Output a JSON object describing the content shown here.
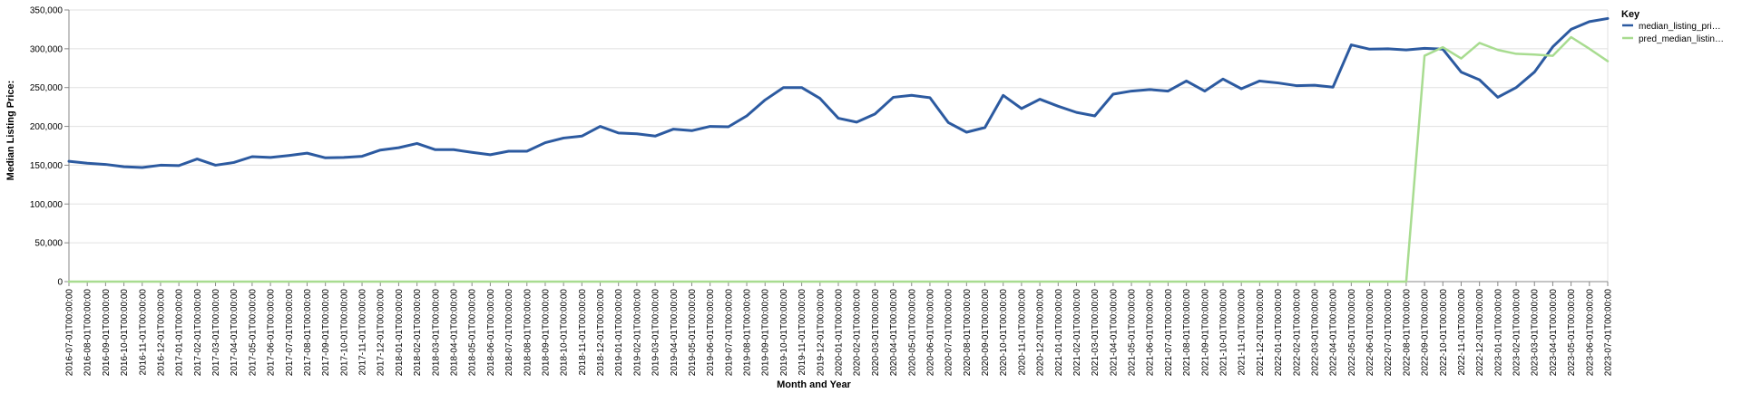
{
  "chart_data": {
    "type": "line",
    "title": "",
    "xlabel": "Month and Year",
    "ylabel": "Median Listing Price:",
    "ylim": [
      0,
      350000
    ],
    "yticks": [
      0,
      50000,
      100000,
      150000,
      200000,
      250000,
      300000,
      350000
    ],
    "ytick_labels": [
      "0",
      "50,000",
      "100,000",
      "150,000",
      "200,000",
      "250,000",
      "300,000",
      "350,000"
    ],
    "grid": true,
    "legend": {
      "title": "Key",
      "position": "top-right"
    },
    "x": [
      "2016-07-01T00:00:00",
      "2016-08-01T00:00:00",
      "2016-09-01T00:00:00",
      "2016-10-01T00:00:00",
      "2016-11-01T00:00:00",
      "2016-12-01T00:00:00",
      "2017-01-01T00:00:00",
      "2017-02-01T00:00:00",
      "2017-03-01T00:00:00",
      "2017-04-01T00:00:00",
      "2017-05-01T00:00:00",
      "2017-06-01T00:00:00",
      "2017-07-01T00:00:00",
      "2017-08-01T00:00:00",
      "2017-09-01T00:00:00",
      "2017-10-01T00:00:00",
      "2017-11-01T00:00:00",
      "2017-12-01T00:00:00",
      "2018-01-01T00:00:00",
      "2018-02-01T00:00:00",
      "2018-03-01T00:00:00",
      "2018-04-01T00:00:00",
      "2018-05-01T00:00:00",
      "2018-06-01T00:00:00",
      "2018-07-01T00:00:00",
      "2018-08-01T00:00:00",
      "2018-09-01T00:00:00",
      "2018-10-01T00:00:00",
      "2018-11-01T00:00:00",
      "2018-12-01T00:00:00",
      "2019-01-01T00:00:00",
      "2019-02-01T00:00:00",
      "2019-03-01T00:00:00",
      "2019-04-01T00:00:00",
      "2019-05-01T00:00:00",
      "2019-06-01T00:00:00",
      "2019-07-01T00:00:00",
      "2019-08-01T00:00:00",
      "2019-09-01T00:00:00",
      "2019-10-01T00:00:00",
      "2019-11-01T00:00:00",
      "2019-12-01T00:00:00",
      "2020-01-01T00:00:00",
      "2020-02-01T00:00:00",
      "2020-03-01T00:00:00",
      "2020-04-01T00:00:00",
      "2020-05-01T00:00:00",
      "2020-06-01T00:00:00",
      "2020-07-01T00:00:00",
      "2020-08-01T00:00:00",
      "2020-09-01T00:00:00",
      "2020-10-01T00:00:00",
      "2020-11-01T00:00:00",
      "2020-12-01T00:00:00",
      "2021-01-01T00:00:00",
      "2021-02-01T00:00:00",
      "2021-03-01T00:00:00",
      "2021-04-01T00:00:00",
      "2021-05-01T00:00:00",
      "2021-06-01T00:00:00",
      "2021-07-01T00:00:00",
      "2021-08-01T00:00:00",
      "2021-09-01T00:00:00",
      "2021-10-01T00:00:00",
      "2021-11-01T00:00:00",
      "2021-12-01T00:00:00",
      "2022-01-01T00:00:00",
      "2022-02-01T00:00:00",
      "2022-03-01T00:00:00",
      "2022-04-01T00:00:00",
      "2022-05-01T00:00:00",
      "2022-06-01T00:00:00",
      "2022-07-01T00:00:00",
      "2022-08-01T00:00:00",
      "2022-09-01T00:00:00",
      "2022-10-01T00:00:00",
      "2022-11-01T00:00:00",
      "2022-12-01T00:00:00",
      "2023-01-01T00:00:00",
      "2023-02-01T00:00:00",
      "2023-03-01T00:00:00",
      "2023-04-01T00:00:00",
      "2023-05-01T00:00:00",
      "2023-06-01T00:00:00",
      "2023-07-01T00:00:00"
    ],
    "series": [
      {
        "name": "median_listing_pri…",
        "color": "#2c5aa0",
        "values": [
          155000,
          152500,
          151000,
          148000,
          147000,
          150000,
          149500,
          158000,
          150000,
          153500,
          161000,
          160000,
          162500,
          165500,
          159500,
          160000,
          161500,
          169500,
          172500,
          178000,
          170000,
          170000,
          166500,
          163500,
          168000,
          168000,
          179000,
          185000,
          187500,
          200000,
          191500,
          190500,
          187500,
          196500,
          194500,
          200000,
          199500,
          213500,
          234000,
          250000,
          250000,
          236000,
          210500,
          205500,
          216000,
          237500,
          240000,
          237000,
          205000,
          192500,
          198500,
          240000,
          223000,
          235000,
          226000,
          218000,
          213500,
          241500,
          245500,
          247500,
          245500,
          258500,
          245500,
          261000,
          248500,
          258500,
          256000,
          252500,
          253000,
          250500,
          305000,
          299500,
          300000,
          298500,
          300500,
          299500,
          270000,
          260000,
          237500,
          250000,
          270000,
          302500,
          325000,
          335000,
          339000
        ]
      },
      {
        "name": "pred_median_listin…",
        "color": "#a8dc90",
        "values": [
          0,
          0,
          0,
          0,
          0,
          0,
          0,
          0,
          0,
          0,
          0,
          0,
          0,
          0,
          0,
          0,
          0,
          0,
          0,
          0,
          0,
          0,
          0,
          0,
          0,
          0,
          0,
          0,
          0,
          0,
          0,
          0,
          0,
          0,
          0,
          0,
          0,
          0,
          0,
          0,
          0,
          0,
          0,
          0,
          0,
          0,
          0,
          0,
          0,
          0,
          0,
          0,
          0,
          0,
          0,
          0,
          0,
          0,
          0,
          0,
          0,
          0,
          0,
          0,
          0,
          0,
          0,
          0,
          0,
          0,
          0,
          0,
          0,
          0,
          291000,
          302000,
          287500,
          307500,
          298500,
          293500,
          292500,
          291000,
          315000,
          300000,
          284000
        ]
      }
    ]
  }
}
